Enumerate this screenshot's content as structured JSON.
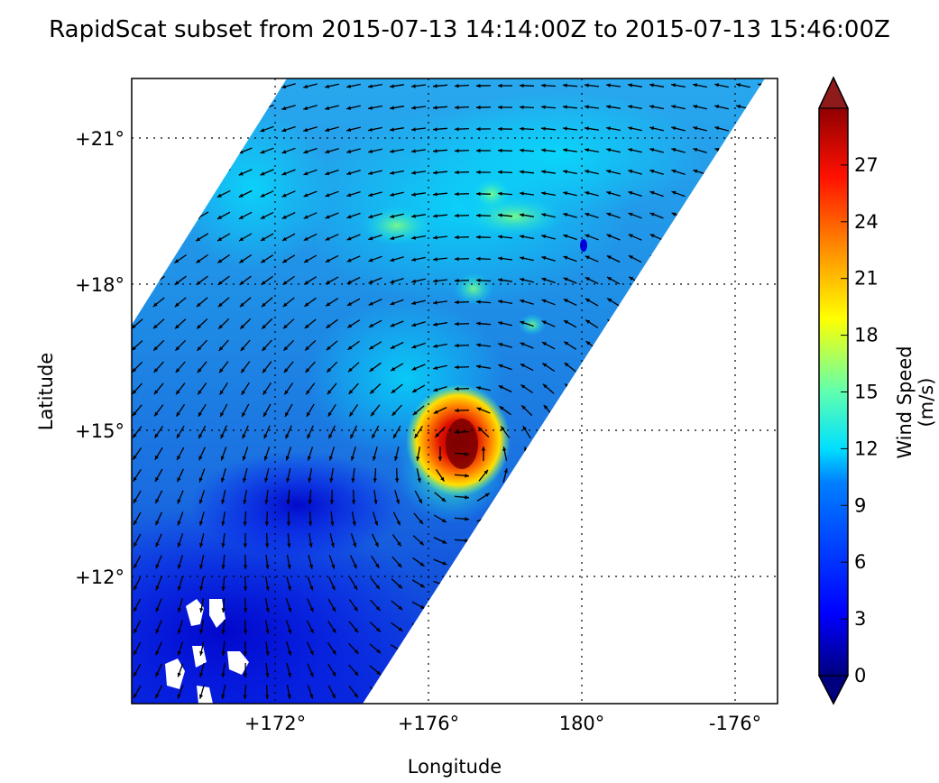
{
  "title": "RapidScat subset from 2015-07-13 14:14:00Z to 2015-07-13 15:46:00Z",
  "axes": {
    "xlabel": "Longitude",
    "ylabel": "Latitude",
    "x_ticks": [
      "+172°",
      "+176°",
      "180°",
      "-176°"
    ],
    "y_ticks": [
      "+21°",
      "+18°",
      "+15°",
      "+12°"
    ]
  },
  "colorbar": {
    "label": "Wind Speed (m/s)",
    "ticks": [
      "0",
      "3",
      "6",
      "9",
      "12",
      "15",
      "18",
      "21",
      "24",
      "27"
    ],
    "range": [
      0,
      30
    ],
    "extend": "both",
    "colormap": [
      "#00007f",
      "#0000ff",
      "#007fff",
      "#00ffff",
      "#7fff7f",
      "#ffff00",
      "#ff7f00",
      "#ff0000",
      "#7f0000"
    ]
  },
  "map": {
    "lon_range": [
      "+168.5°",
      "-174.5°"
    ],
    "lat_range": [
      "+8.6°",
      "+22.2°"
    ],
    "swath_color_dominant": "#2a6fe0",
    "storm_center": {
      "lon": 177.0,
      "lat": 14.8,
      "max_wind": 29
    }
  }
}
